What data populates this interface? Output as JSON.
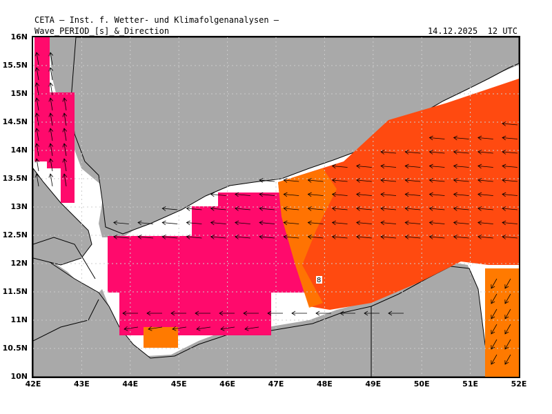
{
  "header": {
    "title": "CETA — Inst. f. Wetter- und Klimafolgenanalysen —",
    "subtitle": "Wave_PERIOD_[s]_&_Direction",
    "timestamp": "14.12.2025  12 UTC"
  },
  "map": {
    "lon_range": [
      42,
      52
    ],
    "lat_range": [
      10,
      16
    ],
    "land_color": "#a9a9a9",
    "sea_color": "#ffffff",
    "grid": "dotted",
    "x_ticks": [
      "42E",
      "43E",
      "44E",
      "45E",
      "46E",
      "47E",
      "48E",
      "49E",
      "50E",
      "51E",
      "52E"
    ],
    "y_ticks": [
      "16N",
      "15.5N",
      "15N",
      "14.5N",
      "14N",
      "13.5N",
      "13N",
      "12.5N",
      "12N",
      "11.5N",
      "11N",
      "10.5N",
      "10N"
    ],
    "contour_label": "8",
    "period_colors": {
      "short": "#ff0a6c",
      "mid": "#ff7a00",
      "long": "#ff4a10"
    },
    "arrow_direction_west_gulf": "westward",
    "arrow_direction_red_sea": "northward"
  }
}
